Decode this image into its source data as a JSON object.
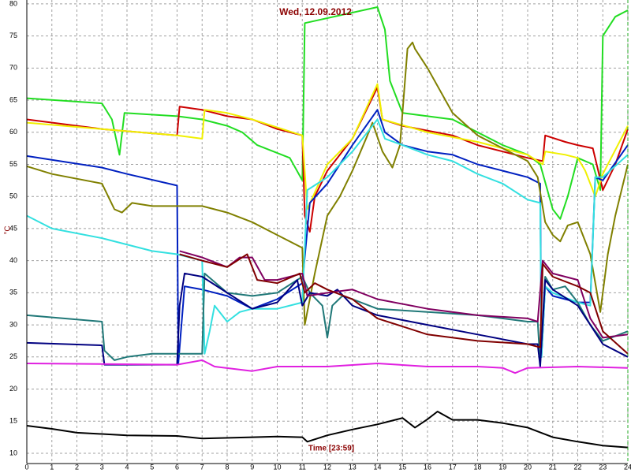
{
  "chart_data": {
    "type": "line",
    "title": "Wed, 12.09.2012",
    "y_label": "°C",
    "x_label": "Time [23:59]",
    "xlim": [
      0,
      24
    ],
    "ylim": [
      8.4,
      80.6
    ],
    "xticks": [
      0,
      1,
      2,
      3,
      4,
      5,
      6,
      7,
      8,
      9,
      10,
      11,
      12,
      13,
      14,
      15,
      16,
      17,
      18,
      19,
      20,
      21,
      22,
      23,
      24
    ],
    "yticks": [
      10,
      15,
      20,
      25,
      30,
      35,
      40,
      45,
      50,
      55,
      60,
      65,
      70,
      75,
      80
    ],
    "grid": true,
    "series": [
      {
        "color": "#22dd22",
        "x": [
          0,
          3,
          3.4,
          3.7,
          3.9,
          6,
          7,
          8,
          8.6,
          9.2,
          10.5,
          11,
          11.1,
          14,
          14.3,
          14.5,
          15,
          17,
          18,
          19,
          20,
          20.5,
          21,
          21.3,
          21.6,
          22,
          22.6,
          22.9,
          23,
          23.5,
          24
        ],
        "values": [
          65.3,
          64.5,
          62,
          56.5,
          63,
          62.5,
          62,
          61,
          60,
          58,
          56,
          52.5,
          77,
          79.5,
          76,
          68,
          63,
          62,
          60,
          58,
          56.5,
          55,
          48,
          46.5,
          50,
          56,
          55,
          51,
          75,
          78,
          79
        ]
      },
      {
        "color": "#cc0000",
        "x": [
          0,
          3,
          6,
          6.1,
          7,
          8,
          9,
          10,
          11,
          11.1,
          11.3,
          11.5,
          12,
          13,
          14,
          14.2,
          15,
          17,
          18,
          19,
          20,
          20.6,
          20.7,
          21.5,
          22,
          22.6,
          23,
          23.5,
          24
        ],
        "values": [
          62,
          60.5,
          59.5,
          64,
          63.5,
          62.5,
          62,
          60.5,
          59.5,
          47,
          44.5,
          50,
          54,
          59,
          67,
          62,
          61,
          59.5,
          58,
          57,
          56,
          55.5,
          59.5,
          58.5,
          58,
          57.5,
          51,
          55,
          60.5
        ]
      },
      {
        "color": "#f0f000",
        "x": [
          0,
          3,
          6,
          7,
          7.1,
          8,
          9,
          11,
          11.2,
          12,
          13,
          14,
          14.2,
          16,
          18,
          20,
          20.6,
          20.7,
          21.5,
          22,
          22.3,
          22.7,
          23,
          24
        ],
        "values": [
          61.5,
          60.5,
          59.5,
          59,
          63.5,
          63,
          62,
          59.5,
          48,
          55,
          59,
          67.5,
          62,
          60,
          58.5,
          56.5,
          55,
          57,
          56.5,
          56,
          54,
          50,
          53.5,
          61
        ]
      },
      {
        "color": "#0020c0",
        "x": [
          0,
          3,
          4,
          6,
          6.05,
          6.3,
          7,
          8,
          9,
          10,
          11,
          11.3,
          12,
          13,
          14,
          14.3,
          15,
          16,
          17,
          18,
          19,
          20,
          20.5,
          20.55,
          20.7,
          21,
          21.5,
          22,
          22.5,
          22.7,
          23,
          24
        ],
        "values": [
          56.3,
          54.5,
          53.5,
          51.7,
          24,
          36,
          35.5,
          34.5,
          32.5,
          34,
          36.5,
          49,
          52,
          58,
          63.5,
          60,
          58,
          57,
          56.5,
          55,
          54,
          53,
          52,
          25,
          36,
          34.5,
          34,
          33.5,
          33.5,
          53,
          52.5,
          58
        ]
      },
      {
        "color": "#808000",
        "x": [
          0,
          1,
          3,
          3.5,
          3.8,
          4.2,
          5,
          6,
          7,
          8,
          9,
          10,
          11,
          11.1,
          11.5,
          12,
          12.5,
          13,
          13.6,
          13.8,
          14.2,
          14.6,
          14.9,
          15.2,
          15.4,
          15.5,
          16,
          17,
          18,
          19,
          20,
          20.4,
          20.7,
          21,
          21.3,
          21.6,
          22,
          22.5,
          22.9,
          23.2,
          23.5,
          24
        ],
        "values": [
          54.7,
          53.5,
          52,
          48,
          47.5,
          49,
          48.5,
          48.5,
          48.5,
          47.5,
          46,
          44,
          42,
          30,
          38,
          47,
          50,
          54,
          59.5,
          61.5,
          57,
          54.5,
          58,
          73,
          74,
          73,
          70,
          63,
          59.5,
          57.5,
          55.5,
          53,
          46,
          44,
          43,
          45.5,
          46,
          41,
          32,
          41,
          47,
          55
        ]
      },
      {
        "color": "#33e0e0",
        "x": [
          0,
          1,
          3,
          5,
          6,
          7,
          7.1,
          7.3,
          7.5,
          8,
          8.5,
          9,
          10,
          11,
          11.2,
          12,
          13,
          14,
          14.3,
          15,
          16,
          17,
          18,
          19,
          20,
          20.5,
          20.55,
          20.7,
          21,
          22,
          22.5,
          22.7,
          23,
          24
        ],
        "values": [
          47,
          45,
          43.5,
          41.5,
          41,
          40,
          25.5,
          29,
          33,
          30.5,
          32,
          32.5,
          32.5,
          33.5,
          51,
          53,
          57,
          62,
          59,
          58,
          56.5,
          55.5,
          53.5,
          52,
          49.5,
          49,
          25,
          36,
          35,
          33.5,
          33,
          53,
          53,
          56.5
        ]
      },
      {
        "color": "#207878",
        "x": [
          0,
          3,
          3.1,
          3.5,
          4,
          5,
          6,
          7,
          7.1,
          8,
          9,
          10,
          11,
          11.3,
          11.8,
          12,
          12.2,
          12.6,
          13,
          14,
          16,
          18,
          20,
          20.4,
          20.5,
          20.7,
          21,
          21.5,
          22,
          22.5,
          23,
          24
        ],
        "values": [
          31.5,
          30.5,
          26,
          24.5,
          25,
          25.5,
          25.5,
          25.5,
          38,
          35,
          34.5,
          35,
          37.5,
          35,
          33,
          28,
          33,
          34.5,
          34,
          32.5,
          32,
          31.5,
          30.5,
          30.5,
          24,
          37.5,
          35.5,
          36,
          33.5,
          30,
          27.5,
          29
        ]
      },
      {
        "color": "#000080",
        "x": [
          0,
          3,
          3.1,
          6,
          6.1,
          6.3,
          7,
          8,
          9,
          10,
          10.8,
          11,
          11.3,
          12,
          12.4,
          13,
          14,
          16,
          18,
          20,
          20.4,
          20.5,
          20.7,
          21,
          22,
          22.5,
          23,
          24
        ],
        "values": [
          27.2,
          26.8,
          23.8,
          23.8,
          33,
          38,
          37.5,
          35,
          32.5,
          33.5,
          37,
          33,
          35,
          34.5,
          35.5,
          33,
          31.5,
          30,
          28.5,
          27,
          27,
          23.5,
          37,
          35.5,
          33,
          30,
          27,
          25
        ]
      },
      {
        "color": "#800060",
        "x": [
          6.1,
          7,
          8,
          8.5,
          9,
          9.5,
          10,
          11,
          11.2,
          12,
          13,
          14,
          16,
          18,
          20,
          20.4,
          20.6,
          21,
          21.5,
          22,
          22.5,
          23,
          24
        ],
        "values": [
          41.5,
          40.5,
          39,
          40.5,
          40.5,
          37,
          37,
          38,
          34.5,
          35,
          35.5,
          34,
          32.5,
          31.5,
          31,
          30.5,
          40,
          38,
          37.5,
          37,
          31,
          28,
          28.5
        ]
      },
      {
        "color": "#800000",
        "x": [
          6.1,
          7,
          8,
          8.8,
          9.2,
          10,
          10.9,
          11.1,
          11.5,
          12,
          13,
          14,
          16,
          18,
          20,
          20.5,
          20.6,
          21,
          22,
          22.5,
          23,
          24
        ],
        "values": [
          41,
          40,
          39,
          41,
          37,
          36.5,
          38,
          35,
          36.5,
          35.5,
          34,
          31,
          28.5,
          27.5,
          27,
          26.5,
          39.5,
          37.5,
          36,
          35,
          29,
          25.5
        ]
      },
      {
        "color": "#e020e0",
        "x": [
          0,
          6,
          7,
          7.5,
          9,
          10,
          12,
          14,
          16,
          18,
          19,
          19.5,
          20,
          22,
          24
        ],
        "values": [
          24,
          23.8,
          24.5,
          23.5,
          22.8,
          23.5,
          23.5,
          24,
          23.5,
          23.5,
          23.3,
          22.5,
          23.3,
          23.5,
          23.3
        ]
      },
      {
        "color": "#000000",
        "x": [
          0,
          1,
          2,
          4,
          6,
          7,
          9,
          10,
          11,
          11.2,
          12,
          13,
          14,
          15,
          15.5,
          16,
          16.4,
          17,
          18,
          19,
          20,
          21,
          22,
          23,
          24
        ],
        "values": [
          14.3,
          13.8,
          13.2,
          12.8,
          12.7,
          12.3,
          12.5,
          12.6,
          12.5,
          11.8,
          12.8,
          13.7,
          14.5,
          15.5,
          14,
          15.3,
          16.5,
          15.2,
          15.2,
          14.7,
          14,
          12.5,
          11.8,
          11.2,
          10.9
        ]
      }
    ]
  }
}
